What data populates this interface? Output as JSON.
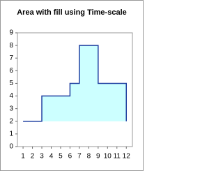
{
  "chart_data": {
    "type": "area",
    "title": "Area with fill using Time-scale",
    "x": [
      1,
      3,
      3,
      6,
      6,
      7,
      7,
      9,
      9,
      12,
      12
    ],
    "values": [
      2,
      2,
      4,
      4,
      5,
      5,
      8,
      8,
      5,
      5,
      2
    ],
    "color": "#1f3fa0",
    "fill": "#ccffff",
    "xlim": [
      0.4,
      12.65
    ],
    "xticks": [
      1,
      2,
      3,
      4,
      5,
      6,
      7,
      8,
      9,
      10,
      11,
      12
    ],
    "ylim": [
      0,
      9
    ],
    "yticks": [
      0,
      1,
      2,
      3,
      4,
      5,
      6,
      7,
      8,
      9
    ],
    "grid": false
  }
}
